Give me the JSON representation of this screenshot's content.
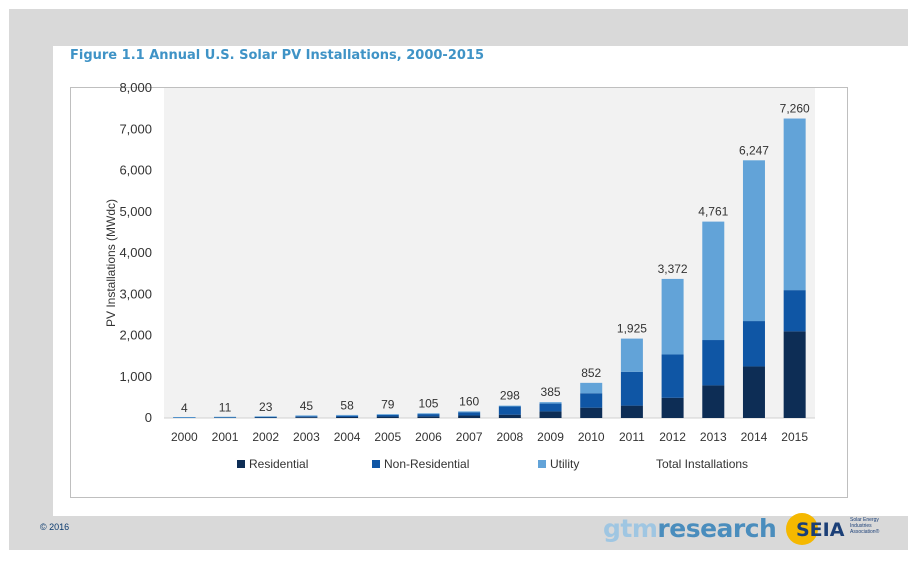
{
  "figure_title": "Figure 1.1  Annual U.S. Solar PV Installations, 2000-2015",
  "copyright": "© 2016",
  "logos": {
    "gtm_part1": "gtm",
    "gtm_part2": "research",
    "seia": "SEIA",
    "seia_tagline": "Solar Energy Industries Association®"
  },
  "colors": {
    "residential": "#0d2d55",
    "non_residential": "#0f56a5",
    "utility": "#62a3d8",
    "title": "#3f93c6",
    "plot_background": "#f2f2f2"
  },
  "chart_data": {
    "type": "bar",
    "stacked": true,
    "title": "",
    "xlabel": "",
    "ylabel": "PV Installations (MWdc)",
    "ylim": [
      0,
      8000
    ],
    "yticks": [
      0,
      1000,
      2000,
      3000,
      4000,
      5000,
      6000,
      7000,
      8000
    ],
    "ytick_labels": [
      "0",
      "1,000",
      "2,000",
      "3,000",
      "4,000",
      "5,000",
      "6,000",
      "7,000",
      "8,000"
    ],
    "grid": false,
    "legend_position": "bottom",
    "categories": [
      "2000",
      "2001",
      "2002",
      "2003",
      "2004",
      "2005",
      "2006",
      "2007",
      "2008",
      "2009",
      "2010",
      "2011",
      "2012",
      "2013",
      "2014",
      "2015"
    ],
    "series": [
      {
        "name": "Residential",
        "values": [
          2,
          5,
          10,
          20,
          25,
          35,
          40,
          60,
          80,
          160,
          250,
          300,
          490,
          790,
          1250,
          2100
        ]
      },
      {
        "name": "Non-Residential",
        "values": [
          2,
          5,
          11,
          23,
          30,
          40,
          55,
          80,
          200,
          190,
          350,
          820,
          1050,
          1100,
          1100,
          1000
        ]
      },
      {
        "name": "Utility",
        "values": [
          0,
          1,
          2,
          2,
          3,
          4,
          10,
          20,
          18,
          35,
          252,
          805,
          1832,
          2871,
          3897,
          4160
        ]
      }
    ],
    "totals": [
      4,
      11,
      23,
      45,
      58,
      79,
      105,
      160,
      298,
      385,
      852,
      1925,
      3372,
      4761,
      6247,
      7260
    ],
    "total_labels": [
      "4",
      "11",
      "23",
      "45",
      "58",
      "79",
      "105",
      "160",
      "298",
      "385",
      "852",
      "1,925",
      "3,372",
      "4,761",
      "6,247",
      "7,260"
    ],
    "legend_extra": "Total Installations"
  }
}
